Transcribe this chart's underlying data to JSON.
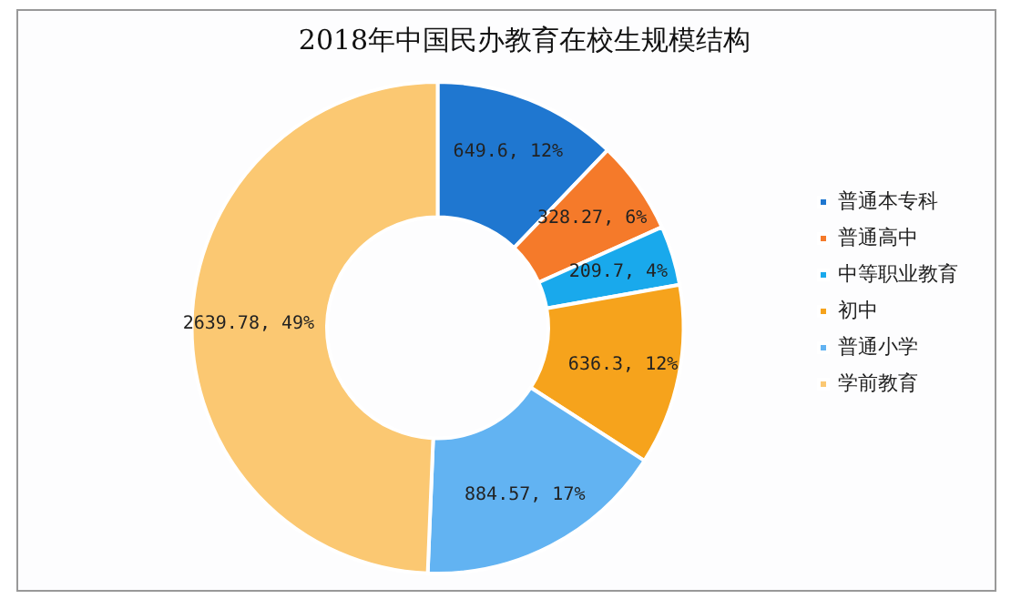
{
  "chart_data": {
    "type": "donut",
    "title": "2018年中国民办教育在校生规模结构",
    "categories": [
      "普通本专科",
      "普通高中",
      "中等职业教育",
      "初中",
      "普通小学",
      "学前教育"
    ],
    "values": [
      649.6,
      328.27,
      209.7,
      636.3,
      884.57,
      2639.78
    ],
    "colors": [
      "#1f77d0",
      "#f57a2a",
      "#19a9ec",
      "#f6a31c",
      "#62b3f2",
      "#fbc872"
    ],
    "value_labels": [
      "649.6, 12%",
      "328.27, 6%",
      "209.7, 4%",
      "636.3, 12%",
      "884.57, 17%",
      "2639.78, 49%"
    ],
    "legend": "right"
  }
}
